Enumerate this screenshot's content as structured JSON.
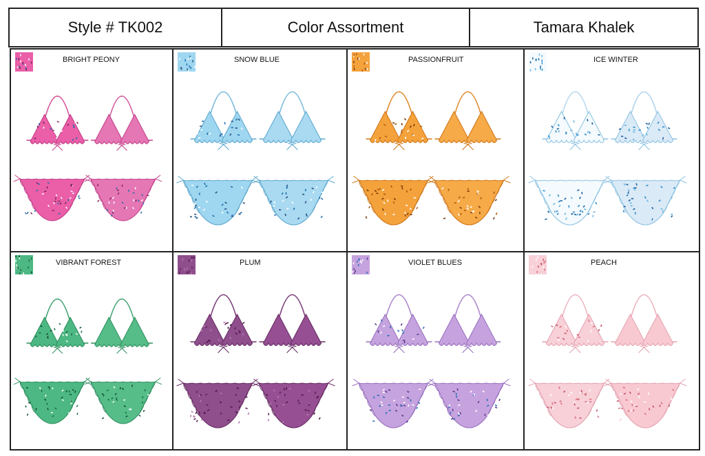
{
  "header": {
    "style": "Style # TK002",
    "title": "Color Assortment",
    "designer": "Tamara Khalek"
  },
  "colorways": [
    {
      "name": "BRIGHT PEONY",
      "main": "#ea5fa8",
      "dark": "#c23d88",
      "back": "#e577b4",
      "dots": [
        "#7a2058",
        "#ffffff",
        "#2d6aa8"
      ],
      "light_dots": false,
      "icon": "bikini-sketch-icon"
    },
    {
      "name": "SNOW BLUE",
      "main": "#9fd6f0",
      "dark": "#5fa9cf",
      "back": "#a9daf1",
      "dots": [
        "#1f6fb0",
        "#ffffff",
        "#2a4d80"
      ],
      "light_dots": false,
      "icon": "bikini-sketch-icon"
    },
    {
      "name": "PASSIONFRUIT",
      "main": "#f4a23c",
      "dark": "#d0781c",
      "back": "#f6aa48",
      "dots": [
        "#b05a10",
        "#ffffff",
        "#7a3a08"
      ],
      "light_dots": false,
      "icon": "bikini-sketch-icon"
    },
    {
      "name": "ICE WINTER",
      "main": "#f4fafd",
      "dark": "#8fc4e2",
      "back": "#dbeaf7",
      "dots": [
        "#2d8ac8",
        "#1b5fa0",
        "#6bb8e0"
      ],
      "light_dots": true,
      "icon": "bikini-sketch-icon"
    },
    {
      "name": "VIBRANT FOREST",
      "main": "#4db883",
      "dark": "#2c8e5e",
      "back": "#56bd89",
      "dots": [
        "#1c6b44",
        "#ffffff",
        "#0f4a2d"
      ],
      "light_dots": false,
      "icon": "bikini-sketch-icon"
    },
    {
      "name": "PLUM",
      "main": "#8f4e8c",
      "dark": "#6a2f67",
      "back": "#954f92",
      "dots": [
        "#5a2357",
        "#b47ab0",
        "#4a1a47"
      ],
      "light_dots": false,
      "icon": "bikini-sketch-icon"
    },
    {
      "name": "VIOLET BLUES",
      "main": "#c5a3de",
      "dark": "#9a72c0",
      "back": "#c6a3df",
      "dots": [
        "#2f6fb8",
        "#ffffff",
        "#5b3a8c"
      ],
      "light_dots": false,
      "icon": "bikini-sketch-icon"
    },
    {
      "name": "PEACH",
      "main": "#f8d0d8",
      "dark": "#e4a4b1",
      "back": "#f9c9d2",
      "dots": [
        "#d9707f",
        "#ffffff",
        "#c45565"
      ],
      "light_dots": false,
      "icon": "bikini-sketch-icon"
    }
  ]
}
